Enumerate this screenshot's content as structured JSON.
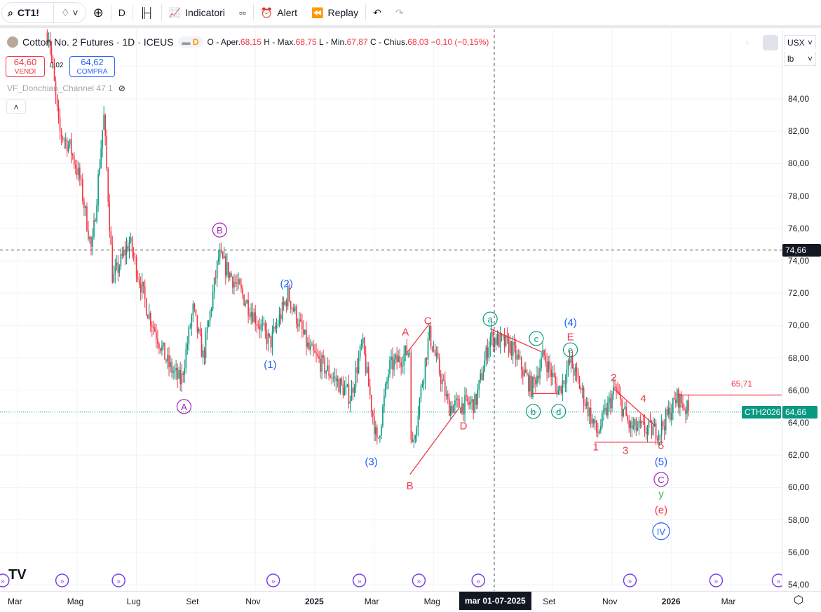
{
  "toolbar": {
    "symbol": "CT1!",
    "interval": "D",
    "indicators": "Indicatori",
    "alert": "Alert",
    "replay": "Replay"
  },
  "legend": {
    "title": "Cotton No. 2 Futures · 1D · ICEUS",
    "badge": "D",
    "o_label": "O - Aper.",
    "o": "68,15",
    "h_label": "H - Max.",
    "h": "68,75",
    "l_label": "L - Min.",
    "l": "67,87",
    "c_label": "C - Chius.",
    "c": "68,03",
    "change": "−0,10 (−0,15%)"
  },
  "trade": {
    "sell_price": "64,60",
    "sell_label": "VENDI",
    "spread": "0,02",
    "buy_price": "64,62",
    "buy_label": "COMPRA"
  },
  "indicator": {
    "name": "VF_Donchian_Channel 47 1"
  },
  "price_axis": {
    "currency": "USX",
    "unit": "lb",
    "ticks": [
      "84,00",
      "82,00",
      "80,00",
      "78,00",
      "76,00",
      "74,00",
      "72,00",
      "70,00",
      "68,00",
      "66,00",
      "64,00",
      "62,00",
      "60,00",
      "58,00",
      "56,00",
      "54,00"
    ],
    "crosshair_price": "74,66",
    "last_price": "64,66",
    "last_symbol": "CTH2026",
    "level_label": "65,71"
  },
  "time_axis": {
    "labels": [
      {
        "t": "Mar",
        "m": 0
      },
      {
        "t": "Mag",
        "m": 2
      },
      {
        "t": "Lug",
        "m": 4
      },
      {
        "t": "Set",
        "m": 6
      },
      {
        "t": "Nov",
        "m": 8
      },
      {
        "t": "2025",
        "m": 10,
        "bold": true
      },
      {
        "t": "Mar",
        "m": 12
      },
      {
        "t": "Mag",
        "m": 14
      },
      {
        "t": "Set",
        "m": 18
      },
      {
        "t": "Nov",
        "m": 20
      },
      {
        "t": "2026",
        "m": 22,
        "bold": true
      },
      {
        "t": "Mar",
        "m": 24
      }
    ],
    "crosshair_label": "mar 01-07-2025"
  },
  "chart_data": {
    "type": "candlestick",
    "price_range": [
      54,
      84
    ],
    "anchors": [
      [
        -0.3,
        90
      ],
      [
        1.06,
        88
      ],
      [
        1.4,
        82
      ],
      [
        1.77,
        81
      ],
      [
        2.1,
        79
      ],
      [
        2.5,
        74.5
      ],
      [
        2.9,
        83
      ],
      [
        3.2,
        72.8
      ],
      [
        3.77,
        75.2
      ],
      [
        4.36,
        71
      ],
      [
        5.06,
        67.6
      ],
      [
        5.5,
        66.5
      ],
      [
        5.9,
        71
      ],
      [
        6.25,
        68
      ],
      [
        6.77,
        74.3
      ],
      [
        7.4,
        72.4
      ],
      [
        8.5,
        68.9
      ],
      [
        9.1,
        71.9
      ],
      [
        9.8,
        68.5
      ],
      [
        11.2,
        65.6
      ],
      [
        11.6,
        68.9
      ],
      [
        12.1,
        62.6
      ],
      [
        12.5,
        67.4
      ],
      [
        13.2,
        68.5
      ],
      [
        13.25,
        62
      ],
      [
        13.85,
        69.5
      ],
      [
        14.5,
        65
      ],
      [
        15.4,
        65.2
      ],
      [
        15.9,
        69.3
      ],
      [
        16.6,
        68.7
      ],
      [
        17.3,
        66.1
      ],
      [
        17.7,
        68.2
      ],
      [
        18.2,
        65.9
      ],
      [
        18.6,
        67.8
      ],
      [
        19.5,
        63.3
      ],
      [
        20.1,
        66.1
      ],
      [
        20.6,
        63.7
      ],
      [
        21.6,
        63.5
      ],
      [
        22.2,
        65.6
      ],
      [
        22.6,
        64.6
      ]
    ]
  },
  "annotations": [
    {
      "t": "A",
      "m": 5.6,
      "p": 65,
      "c": "#9c27b0",
      "s": "circle"
    },
    {
      "t": "B",
      "m": 6.8,
      "p": 75.9,
      "c": "#9c27b0",
      "s": "circle"
    },
    {
      "t": "(1)",
      "m": 8.5,
      "p": 67.6,
      "c": "#2962ff"
    },
    {
      "t": "(2)",
      "m": 9.05,
      "p": 72.6,
      "c": "#2962ff"
    },
    {
      "t": "(3)",
      "m": 11.9,
      "p": 61.6,
      "c": "#2962ff"
    },
    {
      "t": "A",
      "m": 13.05,
      "p": 69.6,
      "c": "#f23645"
    },
    {
      "t": "C",
      "m": 13.8,
      "p": 70.3,
      "c": "#f23645"
    },
    {
      "t": "B",
      "m": 13.2,
      "p": 60.1,
      "c": "#f23645"
    },
    {
      "t": "D",
      "m": 15,
      "p": 63.8,
      "c": "#f23645"
    },
    {
      "t": "a",
      "m": 15.9,
      "p": 70.4,
      "c": "#089981",
      "s": "circle"
    },
    {
      "t": "c",
      "m": 17.45,
      "p": 69.2,
      "c": "#089981",
      "s": "circle"
    },
    {
      "t": "b",
      "m": 17.35,
      "p": 64.7,
      "c": "#089981",
      "s": "circle"
    },
    {
      "t": "d",
      "m": 18.2,
      "p": 64.7,
      "c": "#089981",
      "s": "circle"
    },
    {
      "t": "(4)",
      "m": 18.6,
      "p": 70.2,
      "c": "#2962ff"
    },
    {
      "t": "E",
      "m": 18.6,
      "p": 69.3,
      "c": "#f23645"
    },
    {
      "t": "e",
      "m": 18.6,
      "p": 68.5,
      "c": "#089981",
      "s": "circle"
    },
    {
      "t": "1",
      "m": 19.45,
      "p": 62.5,
      "c": "#f23645"
    },
    {
      "t": "2",
      "m": 20.05,
      "p": 66.8,
      "c": "#f23645"
    },
    {
      "t": "3",
      "m": 20.45,
      "p": 62.3,
      "c": "#f23645"
    },
    {
      "t": "4",
      "m": 21.05,
      "p": 65.5,
      "c": "#f23645"
    },
    {
      "t": "5",
      "m": 21.65,
      "p": 62.6,
      "c": "#f23645"
    },
    {
      "t": "(5)",
      "m": 21.65,
      "p": 61.6,
      "c": "#2962ff"
    },
    {
      "t": "C",
      "m": 21.65,
      "p": 60.5,
      "c": "#9c27b0",
      "s": "circle"
    },
    {
      "t": "y",
      "m": 21.65,
      "p": 59.6,
      "c": "#4caf50"
    },
    {
      "t": "(e)",
      "m": 21.65,
      "p": 58.6,
      "c": "#f23645"
    },
    {
      "t": "IV",
      "m": 21.65,
      "p": 57.3,
      "c": "#2962ff",
      "s": "circle"
    }
  ],
  "lines": [
    [
      13.05,
      68.2,
      13.85,
      70.1,
      "#f23645"
    ],
    [
      13.2,
      60.8,
      14.85,
      64.9,
      "#f23645"
    ],
    [
      15.9,
      69.8,
      17.6,
      68.4,
      "#f23645"
    ],
    [
      17.3,
      65.8,
      18.15,
      65.8,
      "#f23645"
    ],
    [
      19.4,
      62.8,
      21.5,
      62.8,
      "#f23645"
    ],
    [
      20.05,
      66.1,
      21.45,
      63.8,
      "#f23645"
    ],
    [
      22.2,
      65.71,
      25.7,
      65.71,
      "#f23645"
    ]
  ]
}
